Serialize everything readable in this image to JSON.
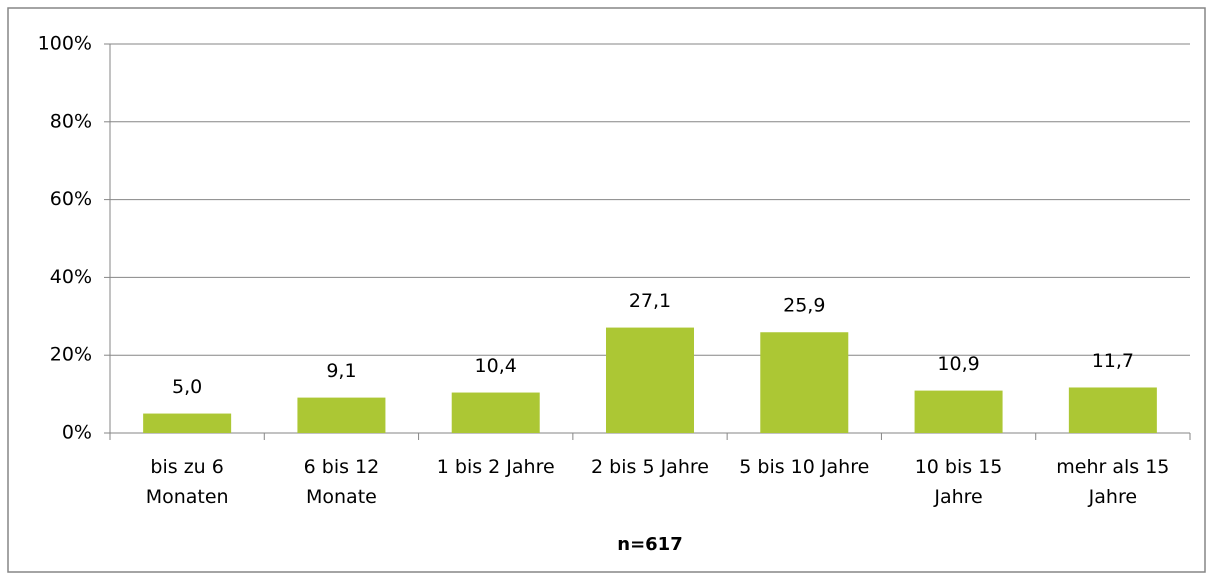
{
  "chart_data": {
    "type": "bar",
    "categories": [
      "bis zu 6 Monaten",
      "6 bis 12 Monate",
      "1 bis 2 Jahre",
      "2 bis 5 Jahre",
      "5 bis 10 Jahre",
      "10 bis 15 Jahre",
      "mehr als 15 Jahre"
    ],
    "values": [
      5.0,
      9.1,
      10.4,
      27.1,
      25.9,
      10.9,
      11.7
    ],
    "value_labels": [
      "5,0",
      "9,1",
      "10,4",
      "27,1",
      "25,9",
      "10,9",
      "11,7"
    ],
    "color": "#acc734",
    "x_label": "n=617",
    "ylim": [
      0,
      100
    ],
    "yticks": [
      {
        "value": 0,
        "label": "0%"
      },
      {
        "value": 20,
        "label": "20%"
      },
      {
        "value": 40,
        "label": "40%"
      },
      {
        "value": 60,
        "label": "60%"
      },
      {
        "value": 80,
        "label": "80%"
      },
      {
        "value": 100,
        "label": "100%"
      }
    ],
    "grid": true
  }
}
